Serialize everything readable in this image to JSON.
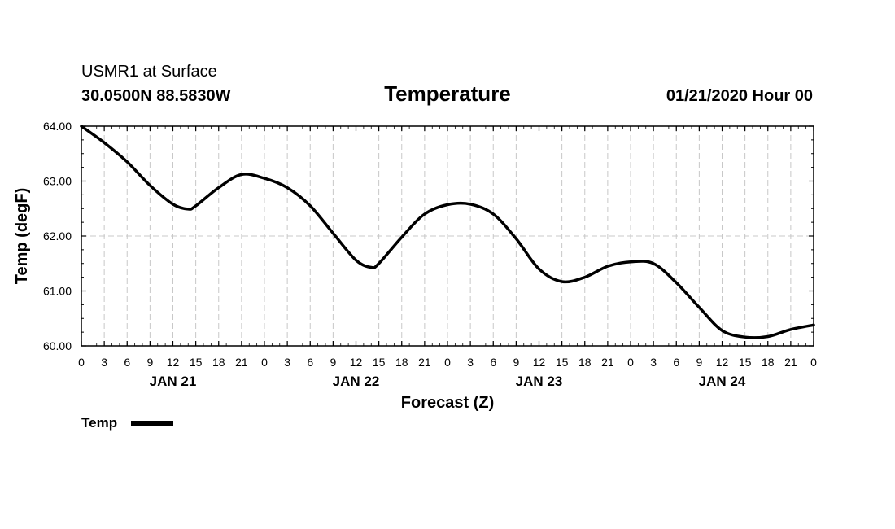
{
  "header": {
    "station_line": "USMR1 at Surface",
    "coords_line": "30.0500N 88.5830W",
    "datetime_line": "01/21/2020 Hour 00"
  },
  "chart_data": {
    "type": "line",
    "title": "Temperature",
    "xlabel": "Forecast (Z)",
    "ylabel": "Temp (degF)",
    "ylim": [
      60.0,
      64.0
    ],
    "xlim": [
      0,
      96
    ],
    "x_units": "forecast hours",
    "y_ticks": [
      "60.00",
      "61.00",
      "62.00",
      "63.00",
      "64.00"
    ],
    "x_tick_labels": [
      "0",
      "3",
      "6",
      "9",
      "12",
      "15",
      "18",
      "21",
      "0",
      "3",
      "6",
      "9",
      "12",
      "15",
      "18",
      "21",
      "0",
      "3",
      "6",
      "9",
      "12",
      "15",
      "18",
      "21",
      "0",
      "3",
      "6",
      "9",
      "12",
      "15",
      "18",
      "21",
      "0"
    ],
    "day_labels": [
      {
        "label": "JAN 21",
        "hour": 12
      },
      {
        "label": "JAN 22",
        "hour": 36
      },
      {
        "label": "JAN 23",
        "hour": 60
      },
      {
        "label": "JAN 24",
        "hour": 84
      }
    ],
    "grid": true,
    "legend": [
      {
        "label": "Temp",
        "color": "#000000"
      }
    ],
    "series": [
      {
        "name": "Temp",
        "color": "#000000",
        "x": [
          0,
          3,
          6,
          9,
          12,
          14,
          15,
          18,
          21,
          24,
          27,
          30,
          33,
          36,
          38,
          39,
          42,
          45,
          48,
          51,
          54,
          57,
          60,
          63,
          66,
          69,
          72,
          75,
          78,
          81,
          84,
          87,
          90,
          93,
          96
        ],
        "y": [
          64.0,
          63.7,
          63.35,
          62.92,
          62.58,
          62.49,
          62.55,
          62.88,
          63.12,
          63.05,
          62.88,
          62.55,
          62.05,
          61.56,
          61.43,
          61.5,
          61.98,
          62.4,
          62.57,
          62.58,
          62.4,
          61.95,
          61.4,
          61.17,
          61.25,
          61.45,
          61.53,
          61.5,
          61.15,
          60.7,
          60.28,
          60.16,
          60.17,
          60.3,
          60.38
        ]
      }
    ]
  }
}
